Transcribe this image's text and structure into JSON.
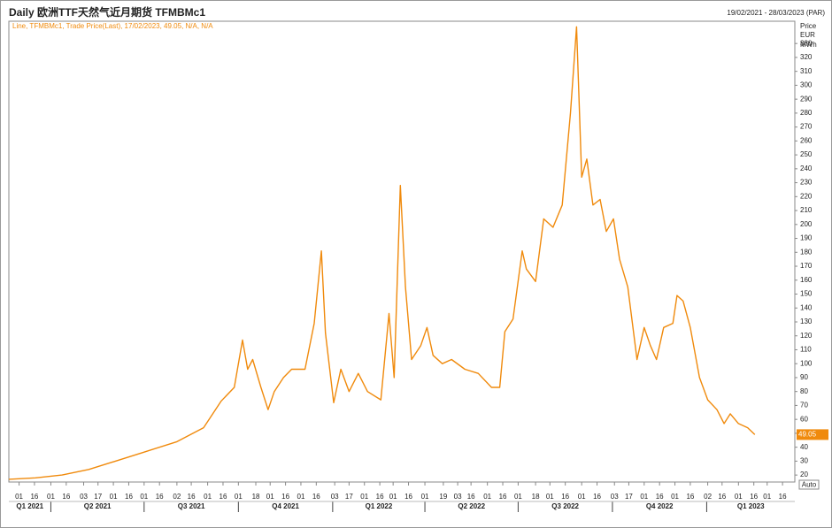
{
  "chart_data": {
    "type": "line",
    "title": "Daily 欧洲TTF天然气近月期货 TFMBMc1",
    "date_range": "19/02/2021 - 28/03/2023 (PAR)",
    "legend_text": "Line, TFMBMc1, Trade Price(Last), 17/02/2023, 49.05, N/A, N/A",
    "y_axis_label": [
      "Price",
      "EUR",
      "MWh"
    ],
    "footer_label": "Auto",
    "x": [
      "2021-02-19",
      "2021-03-17",
      "2021-04-12",
      "2021-05-08",
      "2021-06-03",
      "2021-06-29",
      "2021-08-02",
      "2021-08-28",
      "2021-09-14",
      "2021-09-27",
      "2021-10-05",
      "2021-10-10",
      "2021-10-15",
      "2021-10-23",
      "2021-10-30",
      "2021-11-05",
      "2021-11-14",
      "2021-11-22",
      "2021-12-05",
      "2021-12-14",
      "2021-12-21",
      "2021-12-25",
      "2022-01-02",
      "2022-01-09",
      "2022-01-17",
      "2022-01-26",
      "2022-02-04",
      "2022-02-17",
      "2022-02-25",
      "2022-03-02",
      "2022-03-08",
      "2022-03-13",
      "2022-03-19",
      "2022-03-28",
      "2022-04-03",
      "2022-04-09",
      "2022-04-18",
      "2022-04-27",
      "2022-05-10",
      "2022-05-23",
      "2022-06-05",
      "2022-06-13",
      "2022-06-18",
      "2022-06-26",
      "2022-07-05",
      "2022-07-09",
      "2022-07-18",
      "2022-07-26",
      "2022-08-04",
      "2022-08-13",
      "2022-08-21",
      "2022-08-27",
      "2022-09-01",
      "2022-09-06",
      "2022-09-12",
      "2022-09-19",
      "2022-09-25",
      "2022-10-02",
      "2022-10-08",
      "2022-10-16",
      "2022-10-21",
      "2022-10-25",
      "2022-11-01",
      "2022-11-07",
      "2022-11-13",
      "2022-11-20",
      "2022-11-29",
      "2022-12-03",
      "2022-12-09",
      "2022-12-16",
      "2022-12-25",
      "2023-01-02",
      "2023-01-11",
      "2023-01-18",
      "2023-01-24",
      "2023-02-01",
      "2023-02-10",
      "2023-02-17"
    ],
    "series": [
      {
        "name": "TFMBMc1",
        "color": "#f08a0c",
        "values": [
          17,
          18,
          20,
          24,
          30,
          36,
          44,
          54,
          73,
          83,
          117,
          96,
          103,
          83,
          67,
          80,
          90,
          96,
          96,
          129,
          181,
          122,
          72,
          96,
          80,
          93,
          80,
          74,
          136,
          90,
          228,
          155,
          103,
          113,
          126,
          106,
          100,
          103,
          96,
          93,
          83,
          83,
          123,
          132,
          181,
          168,
          159,
          204,
          198,
          214,
          280,
          342,
          234,
          247,
          214,
          218,
          195,
          204,
          175,
          155,
          126,
          103,
          126,
          113,
          103,
          126,
          129,
          149,
          145,
          126,
          90,
          74,
          67,
          57,
          64,
          57,
          54,
          49.05
        ]
      }
    ],
    "xlim": [
      "2021-02-19",
      "2023-03-28"
    ],
    "ylim": [
      15,
      346
    ],
    "yticks": [
      20,
      30,
      40,
      50,
      60,
      70,
      80,
      90,
      100,
      110,
      120,
      130,
      140,
      150,
      160,
      170,
      180,
      190,
      200,
      210,
      220,
      230,
      240,
      250,
      260,
      270,
      280,
      290,
      300,
      310,
      320,
      330
    ],
    "xticks": [
      {
        "value": "2021-03-01",
        "label": "01"
      },
      {
        "value": "2021-03-16",
        "label": "16"
      },
      {
        "value": "2021-04-01",
        "label": "01"
      },
      {
        "value": "2021-04-16",
        "label": "16"
      },
      {
        "value": "2021-05-03",
        "label": "03"
      },
      {
        "value": "2021-05-17",
        "label": "17"
      },
      {
        "value": "2021-06-01",
        "label": "01"
      },
      {
        "value": "2021-06-16",
        "label": "16"
      },
      {
        "value": "2021-07-01",
        "label": "01"
      },
      {
        "value": "2021-07-16",
        "label": "16"
      },
      {
        "value": "2021-08-02",
        "label": "02"
      },
      {
        "value": "2021-08-16",
        "label": "16"
      },
      {
        "value": "2021-09-01",
        "label": "01"
      },
      {
        "value": "2021-09-16",
        "label": "16"
      },
      {
        "value": "2021-10-01",
        "label": "01"
      },
      {
        "value": "2021-10-18",
        "label": "18"
      },
      {
        "value": "2021-11-01",
        "label": "01"
      },
      {
        "value": "2021-11-16",
        "label": "16"
      },
      {
        "value": "2021-12-01",
        "label": "01"
      },
      {
        "value": "2021-12-16",
        "label": "16"
      },
      {
        "value": "2022-01-03",
        "label": "03"
      },
      {
        "value": "2022-01-17",
        "label": "17"
      },
      {
        "value": "2022-02-01",
        "label": "01"
      },
      {
        "value": "2022-02-16",
        "label": "16"
      },
      {
        "value": "2022-03-01",
        "label": "01"
      },
      {
        "value": "2022-03-16",
        "label": "16"
      },
      {
        "value": "2022-04-01",
        "label": "01"
      },
      {
        "value": "2022-04-19",
        "label": "19"
      },
      {
        "value": "2022-05-03",
        "label": "03"
      },
      {
        "value": "2022-05-16",
        "label": "16"
      },
      {
        "value": "2022-06-01",
        "label": "01"
      },
      {
        "value": "2022-06-16",
        "label": "16"
      },
      {
        "value": "2022-07-01",
        "label": "01"
      },
      {
        "value": "2022-07-18",
        "label": "18"
      },
      {
        "value": "2022-08-01",
        "label": "01"
      },
      {
        "value": "2022-08-16",
        "label": "16"
      },
      {
        "value": "2022-09-01",
        "label": "01"
      },
      {
        "value": "2022-09-16",
        "label": "16"
      },
      {
        "value": "2022-10-03",
        "label": "03"
      },
      {
        "value": "2022-10-17",
        "label": "17"
      },
      {
        "value": "2022-11-01",
        "label": "01"
      },
      {
        "value": "2022-11-16",
        "label": "16"
      },
      {
        "value": "2022-12-01",
        "label": "01"
      },
      {
        "value": "2022-12-16",
        "label": "16"
      },
      {
        "value": "2023-01-02",
        "label": "02"
      },
      {
        "value": "2023-01-16",
        "label": "16"
      },
      {
        "value": "2023-02-01",
        "label": "01"
      },
      {
        "value": "2023-02-16",
        "label": "16"
      },
      {
        "value": "2023-03-01",
        "label": "01"
      },
      {
        "value": "2023-03-16",
        "label": "16"
      }
    ],
    "quarter_ticks": [
      {
        "value": "2021-01-01",
        "label": "Q1 2021"
      },
      {
        "value": "2021-04-01",
        "label": "Q2 2021"
      },
      {
        "value": "2021-07-01",
        "label": "Q3 2021"
      },
      {
        "value": "2021-10-01",
        "label": "Q4 2021"
      },
      {
        "value": "2022-01-01",
        "label": "Q1 2022"
      },
      {
        "value": "2022-04-01",
        "label": "Q2 2022"
      },
      {
        "value": "2022-07-01",
        "label": "Q3 2022"
      },
      {
        "value": "2022-10-01",
        "label": "Q4 2022"
      },
      {
        "value": "2023-01-01",
        "label": "Q1 2023"
      }
    ]
  }
}
